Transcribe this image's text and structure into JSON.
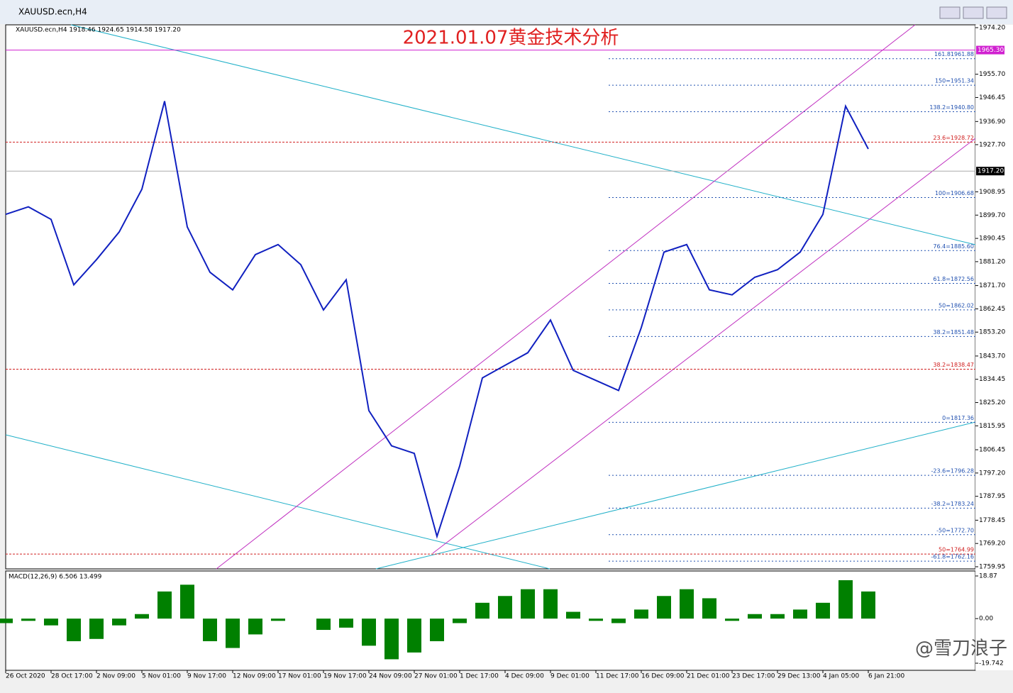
{
  "window": {
    "title": "XAUUSD.ecn,H4"
  },
  "chart": {
    "header": "XAUUSD.ecn,H4  1918.46 1924.65 1914.58 1917.20",
    "title": "2021.01.07黄金技术分析",
    "watermark": "@雪刀浪子",
    "ylim": [
      1759.95,
      1974.2
    ],
    "yticks": [
      {
        "value": 1974.2,
        "label": "1974.20"
      },
      {
        "value": 1955.7,
        "label": "1955.70"
      },
      {
        "value": 1946.45,
        "label": "1946.45"
      },
      {
        "value": 1936.9,
        "label": "1936.90"
      },
      {
        "value": 1927.7,
        "label": "1927.70"
      },
      {
        "value": 1908.95,
        "label": "1908.95"
      },
      {
        "value": 1899.7,
        "label": "1899.70"
      },
      {
        "value": 1890.45,
        "label": "1890.45"
      },
      {
        "value": 1881.2,
        "label": "1881.20"
      },
      {
        "value": 1871.7,
        "label": "1871.70"
      },
      {
        "value": 1862.45,
        "label": "1862.45"
      },
      {
        "value": 1853.2,
        "label": "1853.20"
      },
      {
        "value": 1843.7,
        "label": "1843.70"
      },
      {
        "value": 1834.45,
        "label": "1834.45"
      },
      {
        "value": 1825.2,
        "label": "1825.20"
      },
      {
        "value": 1815.95,
        "label": "1815.95"
      },
      {
        "value": 1806.45,
        "label": "1806.45"
      },
      {
        "value": 1797.2,
        "label": "1797.20"
      },
      {
        "value": 1787.95,
        "label": "1787.95"
      },
      {
        "value": 1778.45,
        "label": "1778.45"
      },
      {
        "value": 1769.2,
        "label": "1769.20"
      },
      {
        "value": 1759.95,
        "label": "1759.95"
      }
    ],
    "markers": [
      {
        "value": 1965.3,
        "label": "1965.30",
        "color": "#d020d0"
      },
      {
        "value": 1917.2,
        "label": "1917.20",
        "color": "#000000"
      }
    ],
    "fib_levels": [
      {
        "label": "161.81961.88",
        "value": 1961.88,
        "color": "#2050b0"
      },
      {
        "label": "150=1951.34",
        "value": 1951.34,
        "color": "#2050b0"
      },
      {
        "label": "138.2=1940.80",
        "value": 1940.8,
        "color": "#2050b0"
      },
      {
        "label": "23.6=1928.72",
        "value": 1928.72,
        "color": "#d02020"
      },
      {
        "label": "100=1906.68",
        "value": 1906.68,
        "color": "#2050b0"
      },
      {
        "label": "76.4=1885.60",
        "value": 1885.6,
        "color": "#2050b0"
      },
      {
        "label": "61.8=1872.56",
        "value": 1872.56,
        "color": "#2050b0"
      },
      {
        "label": "50=1862.02",
        "value": 1862.02,
        "color": "#2050b0"
      },
      {
        "label": "38.2=1851.48",
        "value": 1851.48,
        "color": "#2050b0"
      },
      {
        "label": "38.2=1838.47",
        "value": 1838.47,
        "color": "#d02020"
      },
      {
        "label": "0=1817.36",
        "value": 1817.36,
        "color": "#2050b0"
      },
      {
        "label": "-23.6=1796.28",
        "value": 1796.28,
        "color": "#2050b0"
      },
      {
        "label": "-38.2=1783.24",
        "value": 1783.24,
        "color": "#2050b0"
      },
      {
        "label": "-50=1772.70",
        "value": 1772.7,
        "color": "#2050b0"
      },
      {
        "label": "50=1764.99",
        "value": 1764.99,
        "color": "#d02020"
      },
      {
        "label": "-61.8=1762.16",
        "value": 1762.16,
        "color": "#2050b0"
      }
    ],
    "x_labels": [
      "26 Oct 2020",
      "28 Oct 17:00",
      "2 Nov 09:00",
      "5 Nov 01:00",
      "9 Nov 17:00",
      "12 Nov 09:00",
      "17 Nov 01:00",
      "19 Nov 17:00",
      "24 Nov 09:00",
      "27 Nov 01:00",
      "1 Dec 17:00",
      "4 Dec 09:00",
      "9 Dec 01:00",
      "11 Dec 17:00",
      "16 Dec 09:00",
      "21 Dec 01:00",
      "23 Dec 17:00",
      "29 Dec 13:00",
      "4 Jan 05:00",
      "6 Jan 21:00"
    ],
    "price": {
      "color": "#1020c0",
      "values": [
        1900,
        1903,
        1898,
        1872,
        1882,
        1893,
        1910,
        1945,
        1895,
        1877,
        1870,
        1884,
        1888,
        1880,
        1862,
        1874,
        1822,
        1808,
        1805,
        1772,
        1800,
        1835,
        1840,
        1845,
        1858,
        1838,
        1834,
        1830,
        1855,
        1885,
        1888,
        1870,
        1868,
        1875,
        1878,
        1885,
        1900,
        1943,
        1926
      ]
    },
    "macd": {
      "label": "MACD(12,26,9) 6.506 13.499",
      "ylim": [
        -19.742,
        18.87
      ],
      "yticks": [
        {
          "value": 18.87,
          "label": "18.87"
        },
        {
          "value": 0,
          "label": "0.00"
        },
        {
          "value": -19.742,
          "label": "-19.742"
        }
      ],
      "color": "#008000",
      "values": [
        -2,
        -1,
        -3,
        -10,
        -9,
        -3,
        2,
        12,
        15,
        -10,
        -13,
        -7,
        -1,
        0,
        -5,
        -4,
        -12,
        -18,
        -15,
        -10,
        -2,
        7,
        10,
        13,
        13,
        3,
        -1,
        -2,
        4,
        10,
        13,
        9,
        -1,
        2,
        2,
        4,
        7,
        17,
        12
      ]
    }
  }
}
